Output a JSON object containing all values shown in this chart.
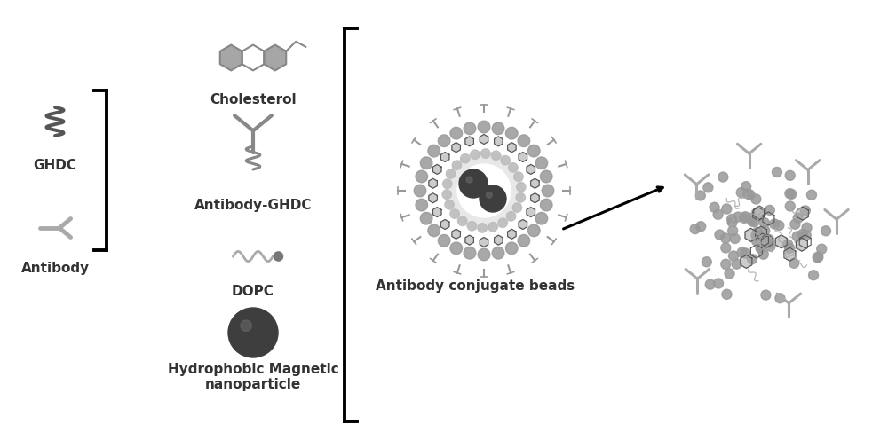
{
  "bg_color": "#ffffff",
  "text_color": "#000000",
  "gray_dark": "#4a4a4a",
  "gray_mid": "#888888",
  "gray_light": "#aaaaaa",
  "gray_lighter": "#cccccc",
  "labels": {
    "ghdc": "GHDC",
    "antibody": "Antibody",
    "cholesterol": "Cholesterol",
    "antibody_ghdc": "Antibody-GHDC",
    "dopc": "DOPC",
    "magnetic": "Hydrophobic Magnetic\nnanoparticle",
    "conjugate": "Antibody conjugate beads"
  },
  "label_fontsize": 11,
  "fig_width": 10.0,
  "fig_height": 4.87
}
